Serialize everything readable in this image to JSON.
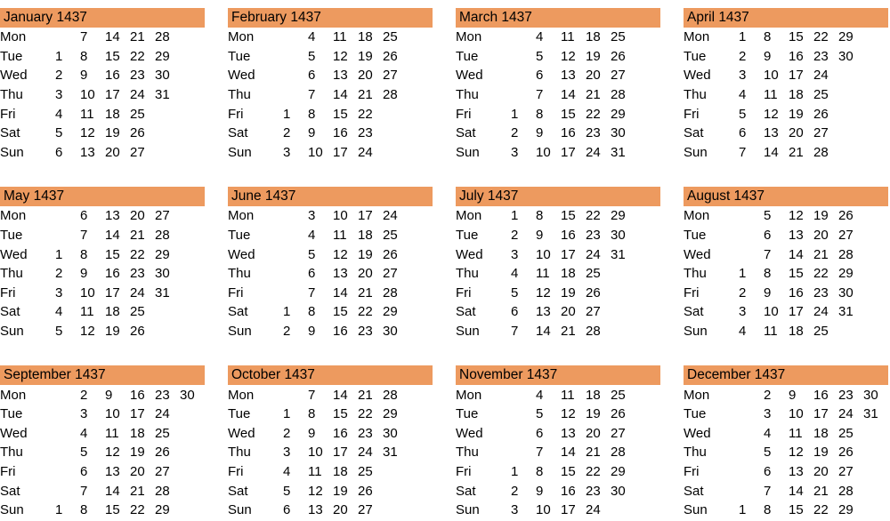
{
  "year": "1437",
  "colors": {
    "header_bg": "#ED9A5F",
    "text": "#000000",
    "background": "#FFFFFF"
  },
  "months": [
    {
      "name": "January",
      "title": "January 1437",
      "rows": [
        {
          "day": "Mon",
          "cells": [
            "",
            "7",
            "14",
            "21",
            "28",
            ""
          ]
        },
        {
          "day": "Tue",
          "cells": [
            "1",
            "8",
            "15",
            "22",
            "29",
            ""
          ]
        },
        {
          "day": "Wed",
          "cells": [
            "2",
            "9",
            "16",
            "23",
            "30",
            ""
          ]
        },
        {
          "day": "Thu",
          "cells": [
            "3",
            "10",
            "17",
            "24",
            "31",
            ""
          ]
        },
        {
          "day": "Fri",
          "cells": [
            "4",
            "11",
            "18",
            "25",
            "",
            ""
          ]
        },
        {
          "day": "Sat",
          "cells": [
            "5",
            "12",
            "19",
            "26",
            "",
            ""
          ]
        },
        {
          "day": "Sun",
          "cells": [
            "6",
            "13",
            "20",
            "27",
            "",
            ""
          ]
        }
      ]
    },
    {
      "name": "February",
      "title": "February 1437",
      "rows": [
        {
          "day": "Mon",
          "cells": [
            "",
            "4",
            "11",
            "18",
            "25",
            ""
          ]
        },
        {
          "day": "Tue",
          "cells": [
            "",
            "5",
            "12",
            "19",
            "26",
            ""
          ]
        },
        {
          "day": "Wed",
          "cells": [
            "",
            "6",
            "13",
            "20",
            "27",
            ""
          ]
        },
        {
          "day": "Thu",
          "cells": [
            "",
            "7",
            "14",
            "21",
            "28",
            ""
          ]
        },
        {
          "day": "Fri",
          "cells": [
            "1",
            "8",
            "15",
            "22",
            "",
            ""
          ]
        },
        {
          "day": "Sat",
          "cells": [
            "2",
            "9",
            "16",
            "23",
            "",
            ""
          ]
        },
        {
          "day": "Sun",
          "cells": [
            "3",
            "10",
            "17",
            "24",
            "",
            ""
          ]
        }
      ]
    },
    {
      "name": "March",
      "title": "March 1437",
      "rows": [
        {
          "day": "Mon",
          "cells": [
            "",
            "4",
            "11",
            "18",
            "25",
            ""
          ]
        },
        {
          "day": "Tue",
          "cells": [
            "",
            "5",
            "12",
            "19",
            "26",
            ""
          ]
        },
        {
          "day": "Wed",
          "cells": [
            "",
            "6",
            "13",
            "20",
            "27",
            ""
          ]
        },
        {
          "day": "Thu",
          "cells": [
            "",
            "7",
            "14",
            "21",
            "28",
            ""
          ]
        },
        {
          "day": "Fri",
          "cells": [
            "1",
            "8",
            "15",
            "22",
            "29",
            ""
          ]
        },
        {
          "day": "Sat",
          "cells": [
            "2",
            "9",
            "16",
            "23",
            "30",
            ""
          ]
        },
        {
          "day": "Sun",
          "cells": [
            "3",
            "10",
            "17",
            "24",
            "31",
            ""
          ]
        }
      ]
    },
    {
      "name": "April",
      "title": "April 1437",
      "rows": [
        {
          "day": "Mon",
          "cells": [
            "1",
            "8",
            "15",
            "22",
            "29",
            ""
          ]
        },
        {
          "day": "Tue",
          "cells": [
            "2",
            "9",
            "16",
            "23",
            "30",
            ""
          ]
        },
        {
          "day": "Wed",
          "cells": [
            "3",
            "10",
            "17",
            "24",
            "",
            ""
          ]
        },
        {
          "day": "Thu",
          "cells": [
            "4",
            "11",
            "18",
            "25",
            "",
            ""
          ]
        },
        {
          "day": "Fri",
          "cells": [
            "5",
            "12",
            "19",
            "26",
            "",
            ""
          ]
        },
        {
          "day": "Sat",
          "cells": [
            "6",
            "13",
            "20",
            "27",
            "",
            ""
          ]
        },
        {
          "day": "Sun",
          "cells": [
            "7",
            "14",
            "21",
            "28",
            "",
            ""
          ]
        }
      ]
    },
    {
      "name": "May",
      "title": "May 1437",
      "rows": [
        {
          "day": "Mon",
          "cells": [
            "",
            "6",
            "13",
            "20",
            "27",
            ""
          ]
        },
        {
          "day": "Tue",
          "cells": [
            "",
            "7",
            "14",
            "21",
            "28",
            ""
          ]
        },
        {
          "day": "Wed",
          "cells": [
            "1",
            "8",
            "15",
            "22",
            "29",
            ""
          ]
        },
        {
          "day": "Thu",
          "cells": [
            "2",
            "9",
            "16",
            "23",
            "30",
            ""
          ]
        },
        {
          "day": "Fri",
          "cells": [
            "3",
            "10",
            "17",
            "24",
            "31",
            ""
          ]
        },
        {
          "day": "Sat",
          "cells": [
            "4",
            "11",
            "18",
            "25",
            "",
            ""
          ]
        },
        {
          "day": "Sun",
          "cells": [
            "5",
            "12",
            "19",
            "26",
            "",
            ""
          ]
        }
      ]
    },
    {
      "name": "June",
      "title": "June 1437",
      "rows": [
        {
          "day": "Mon",
          "cells": [
            "",
            "3",
            "10",
            "17",
            "24",
            ""
          ]
        },
        {
          "day": "Tue",
          "cells": [
            "",
            "4",
            "11",
            "18",
            "25",
            ""
          ]
        },
        {
          "day": "Wed",
          "cells": [
            "",
            "5",
            "12",
            "19",
            "26",
            ""
          ]
        },
        {
          "day": "Thu",
          "cells": [
            "",
            "6",
            "13",
            "20",
            "27",
            ""
          ]
        },
        {
          "day": "Fri",
          "cells": [
            "",
            "7",
            "14",
            "21",
            "28",
            ""
          ]
        },
        {
          "day": "Sat",
          "cells": [
            "1",
            "8",
            "15",
            "22",
            "29",
            ""
          ]
        },
        {
          "day": "Sun",
          "cells": [
            "2",
            "9",
            "16",
            "23",
            "30",
            ""
          ]
        }
      ]
    },
    {
      "name": "July",
      "title": "July 1437",
      "rows": [
        {
          "day": "Mon",
          "cells": [
            "1",
            "8",
            "15",
            "22",
            "29",
            ""
          ]
        },
        {
          "day": "Tue",
          "cells": [
            "2",
            "9",
            "16",
            "23",
            "30",
            ""
          ]
        },
        {
          "day": "Wed",
          "cells": [
            "3",
            "10",
            "17",
            "24",
            "31",
            ""
          ]
        },
        {
          "day": "Thu",
          "cells": [
            "4",
            "11",
            "18",
            "25",
            "",
            ""
          ]
        },
        {
          "day": "Fri",
          "cells": [
            "5",
            "12",
            "19",
            "26",
            "",
            ""
          ]
        },
        {
          "day": "Sat",
          "cells": [
            "6",
            "13",
            "20",
            "27",
            "",
            ""
          ]
        },
        {
          "day": "Sun",
          "cells": [
            "7",
            "14",
            "21",
            "28",
            "",
            ""
          ]
        }
      ]
    },
    {
      "name": "August",
      "title": "August 1437",
      "rows": [
        {
          "day": "Mon",
          "cells": [
            "",
            "5",
            "12",
            "19",
            "26",
            ""
          ]
        },
        {
          "day": "Tue",
          "cells": [
            "",
            "6",
            "13",
            "20",
            "27",
            ""
          ]
        },
        {
          "day": "Wed",
          "cells": [
            "",
            "7",
            "14",
            "21",
            "28",
            ""
          ]
        },
        {
          "day": "Thu",
          "cells": [
            "1",
            "8",
            "15",
            "22",
            "29",
            ""
          ]
        },
        {
          "day": "Fri",
          "cells": [
            "2",
            "9",
            "16",
            "23",
            "30",
            ""
          ]
        },
        {
          "day": "Sat",
          "cells": [
            "3",
            "10",
            "17",
            "24",
            "31",
            ""
          ]
        },
        {
          "day": "Sun",
          "cells": [
            "4",
            "11",
            "18",
            "25",
            "",
            ""
          ]
        }
      ]
    },
    {
      "name": "September",
      "title": "September 1437",
      "rows": [
        {
          "day": "Mon",
          "cells": [
            "",
            "2",
            "9",
            "16",
            "23",
            "30"
          ]
        },
        {
          "day": "Tue",
          "cells": [
            "",
            "3",
            "10",
            "17",
            "24",
            ""
          ]
        },
        {
          "day": "Wed",
          "cells": [
            "",
            "4",
            "11",
            "18",
            "25",
            ""
          ]
        },
        {
          "day": "Thu",
          "cells": [
            "",
            "5",
            "12",
            "19",
            "26",
            ""
          ]
        },
        {
          "day": "Fri",
          "cells": [
            "",
            "6",
            "13",
            "20",
            "27",
            ""
          ]
        },
        {
          "day": "Sat",
          "cells": [
            "",
            "7",
            "14",
            "21",
            "28",
            ""
          ]
        },
        {
          "day": "Sun",
          "cells": [
            "1",
            "8",
            "15",
            "22",
            "29",
            ""
          ]
        }
      ]
    },
    {
      "name": "October",
      "title": "October 1437",
      "rows": [
        {
          "day": "Mon",
          "cells": [
            "",
            "7",
            "14",
            "21",
            "28",
            ""
          ]
        },
        {
          "day": "Tue",
          "cells": [
            "1",
            "8",
            "15",
            "22",
            "29",
            ""
          ]
        },
        {
          "day": "Wed",
          "cells": [
            "2",
            "9",
            "16",
            "23",
            "30",
            ""
          ]
        },
        {
          "day": "Thu",
          "cells": [
            "3",
            "10",
            "17",
            "24",
            "31",
            ""
          ]
        },
        {
          "day": "Fri",
          "cells": [
            "4",
            "11",
            "18",
            "25",
            "",
            ""
          ]
        },
        {
          "day": "Sat",
          "cells": [
            "5",
            "12",
            "19",
            "26",
            "",
            ""
          ]
        },
        {
          "day": "Sun",
          "cells": [
            "6",
            "13",
            "20",
            "27",
            "",
            ""
          ]
        }
      ]
    },
    {
      "name": "November",
      "title": "November 1437",
      "rows": [
        {
          "day": "Mon",
          "cells": [
            "",
            "4",
            "11",
            "18",
            "25",
            ""
          ]
        },
        {
          "day": "Tue",
          "cells": [
            "",
            "5",
            "12",
            "19",
            "26",
            ""
          ]
        },
        {
          "day": "Wed",
          "cells": [
            "",
            "6",
            "13",
            "20",
            "27",
            ""
          ]
        },
        {
          "day": "Thu",
          "cells": [
            "",
            "7",
            "14",
            "21",
            "28",
            ""
          ]
        },
        {
          "day": "Fri",
          "cells": [
            "1",
            "8",
            "15",
            "22",
            "29",
            ""
          ]
        },
        {
          "day": "Sat",
          "cells": [
            "2",
            "9",
            "16",
            "23",
            "30",
            ""
          ]
        },
        {
          "day": "Sun",
          "cells": [
            "3",
            "10",
            "17",
            "24",
            "",
            ""
          ]
        }
      ]
    },
    {
      "name": "December",
      "title": "December 1437",
      "rows": [
        {
          "day": "Mon",
          "cells": [
            "",
            "2",
            "9",
            "16",
            "23",
            "30"
          ]
        },
        {
          "day": "Tue",
          "cells": [
            "",
            "3",
            "10",
            "17",
            "24",
            "31"
          ]
        },
        {
          "day": "Wed",
          "cells": [
            "",
            "4",
            "11",
            "18",
            "25",
            ""
          ]
        },
        {
          "day": "Thu",
          "cells": [
            "",
            "5",
            "12",
            "19",
            "26",
            ""
          ]
        },
        {
          "day": "Fri",
          "cells": [
            "",
            "6",
            "13",
            "20",
            "27",
            ""
          ]
        },
        {
          "day": "Sat",
          "cells": [
            "",
            "7",
            "14",
            "21",
            "28",
            ""
          ]
        },
        {
          "day": "Sun",
          "cells": [
            "1",
            "8",
            "15",
            "22",
            "29",
            ""
          ]
        }
      ]
    }
  ]
}
